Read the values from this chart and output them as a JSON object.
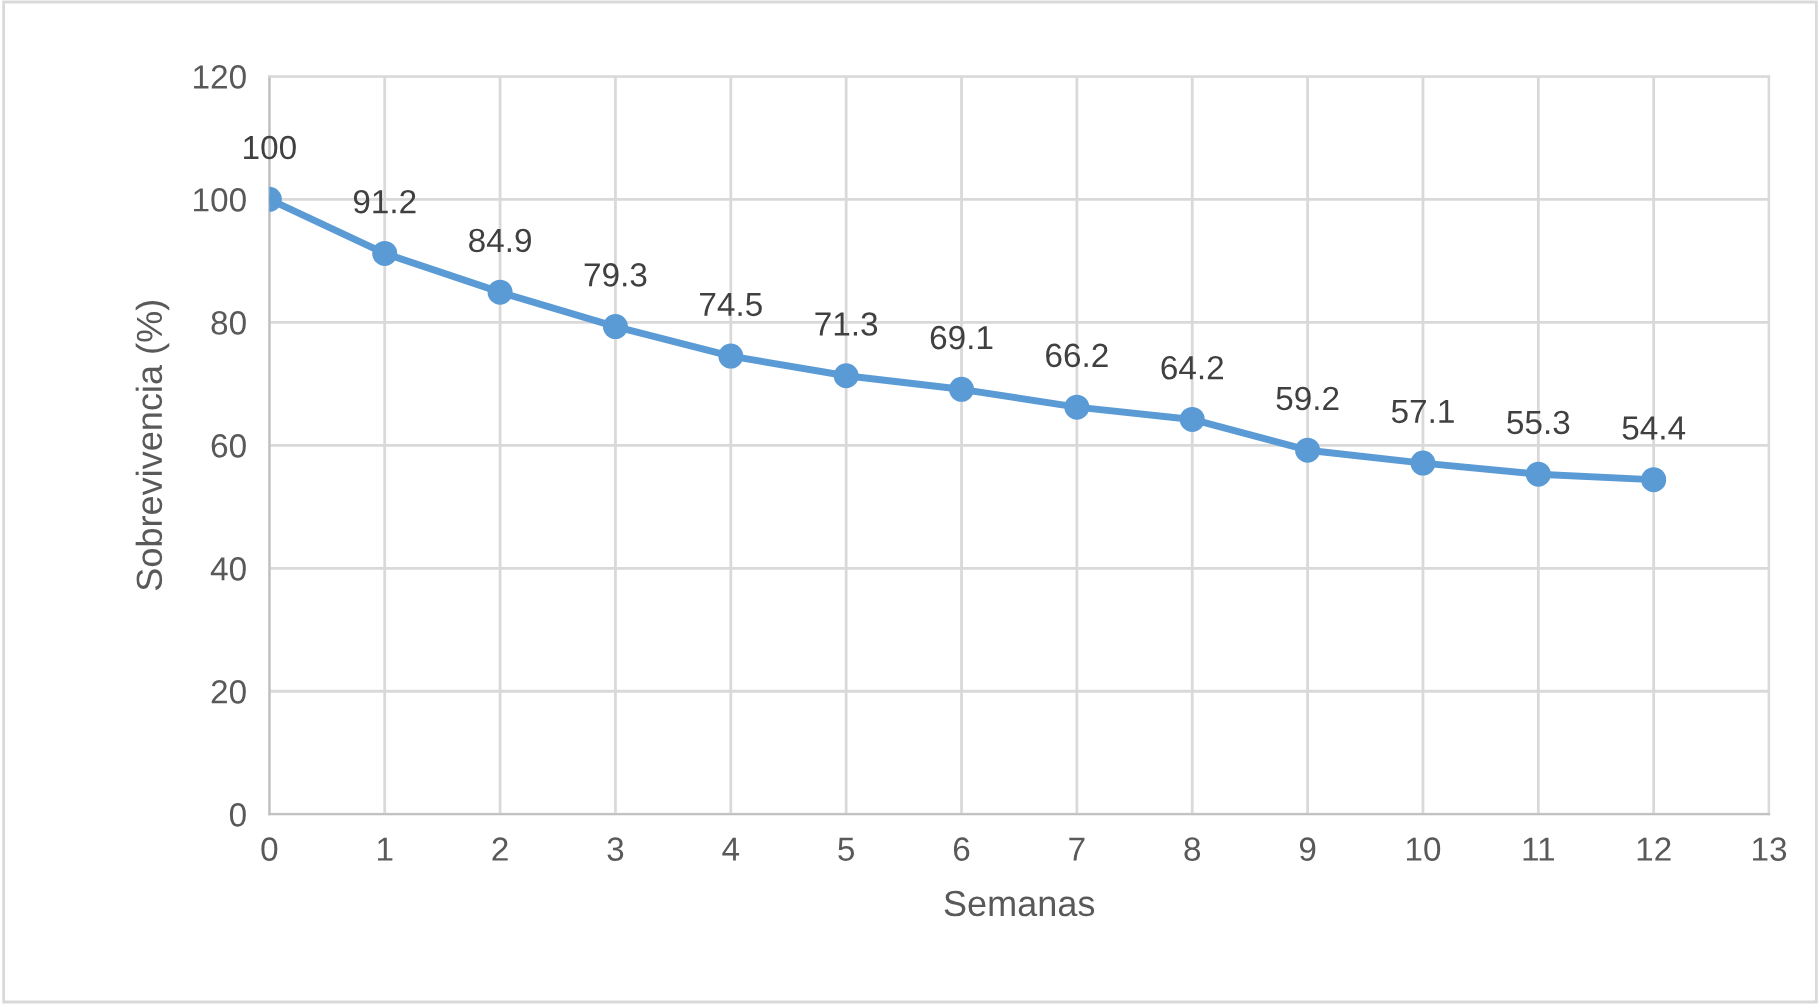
{
  "chart_data": {
    "type": "line",
    "xlabel": "Semanas",
    "ylabel": "Sobrevivencia (%)",
    "x": [
      0,
      1,
      2,
      3,
      4,
      5,
      6,
      7,
      8,
      9,
      10,
      11,
      12
    ],
    "series": [
      {
        "color": "#5b9bd5",
        "values": [
          100,
          91.2,
          84.9,
          79.3,
          74.5,
          71.3,
          69.1,
          66.2,
          64.2,
          59.2,
          57.1,
          55.3,
          54.4
        ]
      }
    ],
    "xlim": [
      0,
      13
    ],
    "xticks": [
      0,
      1,
      2,
      3,
      4,
      5,
      6,
      7,
      8,
      9,
      10,
      11,
      12,
      13
    ],
    "ylim": [
      0,
      120
    ],
    "yticks": [
      0,
      20,
      40,
      60,
      80,
      100,
      120
    ],
    "grid": true,
    "marker": "circle",
    "line_style": "solid",
    "data_labels": true
  }
}
